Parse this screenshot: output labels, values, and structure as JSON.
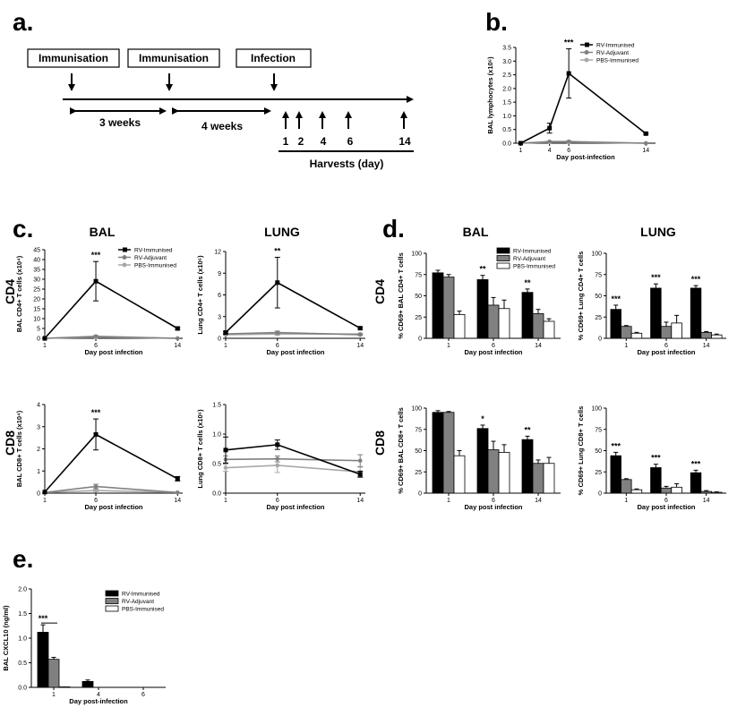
{
  "panel_labels": {
    "a": "a.",
    "b": "b.",
    "c": "c.",
    "d": "d.",
    "e": "e."
  },
  "timeline": {
    "boxes": [
      "Immunisation",
      "Immunisation",
      "Infection"
    ],
    "intervals": [
      "3 weeks",
      "4 weeks"
    ],
    "harvest_days": [
      "1",
      "2",
      "4",
      "6",
      "14"
    ],
    "harvest_label": "Harvests (day)"
  },
  "headers": {
    "c_bal": "BAL",
    "c_lung": "LUNG",
    "d_bal": "BAL",
    "d_lung": "LUNG",
    "row_cd4": "CD4",
    "row_cd8": "CD8"
  },
  "series_names": [
    "RV-Immunised",
    "RV-Adjuvant",
    "PBS-Immunised"
  ],
  "colors": {
    "rv_immunised": "#000000",
    "rv_adjuvant": "#808080",
    "pbs_immunised_line": "#a8a8a8",
    "pbs_immunised_bar": "#ffffff"
  },
  "chart_data": [
    {
      "id": "b",
      "type": "line",
      "x": [
        1,
        4,
        6,
        14
      ],
      "xticks": [
        "1",
        "4",
        "6",
        "14"
      ],
      "xlim": [
        0.5,
        15
      ],
      "ylim": [
        0,
        3.5
      ],
      "yticks": [
        "0.0",
        "0.5",
        "1.0",
        "1.5",
        "2.0",
        "2.5",
        "3.0",
        "3.5"
      ],
      "ylabel": "BAL lymphocytes (x10⁶)",
      "xlabel": "Day post-infection",
      "legend": "top-right",
      "series": [
        {
          "name": "RV-Immunised",
          "values": [
            0.0,
            0.55,
            2.55,
            0.35
          ],
          "err": [
            0.0,
            0.18,
            0.9,
            0.03
          ]
        },
        {
          "name": "RV-Adjuvant",
          "values": [
            0.0,
            0.06,
            0.06,
            0.0
          ],
          "err": [
            0.0,
            0.02,
            0.03,
            0.0
          ]
        },
        {
          "name": "PBS-Immunised",
          "values": [
            0.0,
            0.04,
            0.04,
            0.0
          ],
          "err": [
            0.0,
            0.01,
            0.02,
            0.0
          ]
        }
      ],
      "annotations": [
        {
          "x": 6,
          "text": "***"
        }
      ]
    },
    {
      "id": "c_bal_cd4",
      "type": "line",
      "x": [
        1,
        6,
        14
      ],
      "xticks": [
        "1",
        "6",
        "14"
      ],
      "xlim": [
        1,
        14.5
      ],
      "ylim": [
        0,
        45
      ],
      "yticks": [
        "0",
        "5",
        "10",
        "15",
        "20",
        "25",
        "30",
        "35",
        "40",
        "45"
      ],
      "ylabel": "BAL CD4+ T cells (x10⁴)",
      "xlabel": "Day post infection",
      "legend": "top-right",
      "series": [
        {
          "name": "RV-Immunised",
          "values": [
            0,
            29,
            5
          ],
          "err": [
            0,
            10,
            0.6
          ]
        },
        {
          "name": "RV-Adjuvant",
          "values": [
            0,
            1.0,
            0
          ],
          "err": [
            0,
            0.4,
            0
          ]
        },
        {
          "name": "PBS-Immunised",
          "values": [
            0,
            0.6,
            0
          ],
          "err": [
            0,
            0.3,
            0
          ]
        }
      ],
      "annotations": [
        {
          "x": 6,
          "text": "***"
        }
      ]
    },
    {
      "id": "c_lung_cd4",
      "type": "line",
      "x": [
        1,
        6,
        14
      ],
      "xticks": [
        "1",
        "6",
        "14"
      ],
      "xlim": [
        1,
        14.5
      ],
      "ylim": [
        0,
        12
      ],
      "yticks": [
        "0",
        "3",
        "6",
        "9",
        "12"
      ],
      "ylabel": "Lung CD4+ T cells (x10⁶)",
      "xlabel": "Day post infection",
      "series": [
        {
          "name": "RV-Immunised",
          "values": [
            0.8,
            7.7,
            1.4
          ],
          "err": [
            0.15,
            3.5,
            0.15
          ]
        },
        {
          "name": "RV-Adjuvant",
          "values": [
            0.6,
            0.8,
            0.5
          ],
          "err": [
            0.1,
            0.2,
            0.1
          ]
        },
        {
          "name": "PBS-Immunised",
          "values": [
            0.5,
            0.6,
            0.6
          ],
          "err": [
            0.1,
            0.2,
            0.1
          ]
        }
      ],
      "annotations": [
        {
          "x": 6,
          "text": "**"
        }
      ]
    },
    {
      "id": "c_bal_cd8",
      "type": "line",
      "x": [
        1,
        6,
        14
      ],
      "xticks": [
        "1",
        "6",
        "14"
      ],
      "xlim": [
        1,
        14.5
      ],
      "ylim": [
        0,
        4
      ],
      "yticks": [
        "0",
        "1",
        "2",
        "3",
        "4"
      ],
      "ylabel": "BAL CD8+ T cells (x10⁴)",
      "xlabel": "Day post infection",
      "series": [
        {
          "name": "RV-Immunised",
          "values": [
            0.05,
            2.65,
            0.65
          ],
          "err": [
            0.0,
            0.7,
            0.1
          ]
        },
        {
          "name": "RV-Adjuvant",
          "values": [
            0.03,
            0.3,
            0.03
          ],
          "err": [
            0.0,
            0.1,
            0.0
          ]
        },
        {
          "name": "PBS-Immunised",
          "values": [
            0.03,
            0.12,
            0.03
          ],
          "err": [
            0.0,
            0.05,
            0.0
          ]
        }
      ],
      "annotations": [
        {
          "x": 6,
          "text": "***"
        }
      ]
    },
    {
      "id": "c_lung_cd8",
      "type": "line",
      "x": [
        1,
        6,
        14
      ],
      "xticks": [
        "1",
        "6",
        "14"
      ],
      "xlim": [
        1,
        14.5
      ],
      "ylim": [
        0,
        1.5
      ],
      "yticks": [
        "0.0",
        "0.5",
        "1.0",
        "1.5"
      ],
      "ylabel": "Lung CD8+ T cells (x10⁶)",
      "xlabel": "Day post infection",
      "series": [
        {
          "name": "RV-Immunised",
          "values": [
            0.73,
            0.82,
            0.32
          ],
          "err": [
            0.22,
            0.08,
            0.05
          ]
        },
        {
          "name": "RV-Adjuvant",
          "values": [
            0.57,
            0.58,
            0.55
          ],
          "err": [
            0.06,
            0.05,
            0.1
          ]
        },
        {
          "name": "PBS-Immunised",
          "values": [
            0.43,
            0.47,
            0.36
          ],
          "err": [
            0.06,
            0.12,
            0.08
          ]
        }
      ],
      "annotations": []
    },
    {
      "id": "d_bal_cd4",
      "type": "bar",
      "categories": [
        "1",
        "6",
        "14"
      ],
      "ylim": [
        0,
        100
      ],
      "yticks": [
        "0",
        "25",
        "50",
        "75",
        "100"
      ],
      "ylabel": "% CD69+ BAL CD4+ T cells",
      "xlabel": "Day post infection",
      "legend": "top-right",
      "series": [
        {
          "name": "RV-Immunised",
          "values": [
            77,
            69,
            54
          ],
          "err": [
            3,
            5,
            4
          ]
        },
        {
          "name": "RV-Adjuvant",
          "values": [
            72,
            39,
            29
          ],
          "err": [
            3,
            9,
            5
          ]
        },
        {
          "name": "PBS-Immunised",
          "values": [
            28,
            35,
            20
          ],
          "err": [
            4,
            10,
            3
          ]
        }
      ],
      "annotations": [
        {
          "category": "6",
          "text": "**"
        },
        {
          "category": "14",
          "text": "**"
        }
      ]
    },
    {
      "id": "d_lung_cd4",
      "type": "bar",
      "categories": [
        "1",
        "6",
        "14"
      ],
      "ylim": [
        0,
        100
      ],
      "yticks": [
        "0",
        "25",
        "50",
        "75",
        "100"
      ],
      "ylabel": "% CD69+ Lung CD4+ T cells",
      "xlabel": "Day post infection",
      "series": [
        {
          "name": "RV-Immunised",
          "values": [
            34,
            59,
            59
          ],
          "err": [
            5,
            5,
            3
          ]
        },
        {
          "name": "RV-Adjuvant",
          "values": [
            14,
            14,
            7
          ],
          "err": [
            1,
            5,
            1
          ]
        },
        {
          "name": "PBS-Immunised",
          "values": [
            6,
            18,
            4
          ],
          "err": [
            1,
            9,
            1
          ]
        }
      ],
      "annotations": [
        {
          "category": "1",
          "text": "***"
        },
        {
          "category": "6",
          "text": "***"
        },
        {
          "category": "14",
          "text": "***"
        }
      ]
    },
    {
      "id": "d_bal_cd8",
      "type": "bar",
      "categories": [
        "1",
        "6",
        "14"
      ],
      "ylim": [
        0,
        100
      ],
      "yticks": [
        "0",
        "25",
        "50",
        "75",
        "100"
      ],
      "ylabel": "% CD69+ BAL CD8+ T cells",
      "xlabel": "Day post infection",
      "series": [
        {
          "name": "RV-Immunised",
          "values": [
            95,
            76,
            63
          ],
          "err": [
            2,
            4,
            4
          ]
        },
        {
          "name": "RV-Adjuvant",
          "values": [
            95,
            51,
            35
          ],
          "err": [
            1,
            10,
            4
          ]
        },
        {
          "name": "PBS-Immunised",
          "values": [
            44,
            48,
            35
          ],
          "err": [
            6,
            9,
            7
          ]
        }
      ],
      "annotations": [
        {
          "category": "6",
          "text": "*"
        },
        {
          "category": "14",
          "text": "**"
        }
      ]
    },
    {
      "id": "d_lung_cd8",
      "type": "bar",
      "categories": [
        "1",
        "6",
        "14"
      ],
      "ylim": [
        0,
        100
      ],
      "yticks": [
        "0",
        "25",
        "50",
        "75",
        "100"
      ],
      "ylabel": "% CD69+ Lung CD8+ T cells",
      "xlabel": "Day post infection",
      "series": [
        {
          "name": "RV-Immunised",
          "values": [
            44,
            30,
            24
          ],
          "err": [
            4,
            4,
            3
          ]
        },
        {
          "name": "RV-Adjuvant",
          "values": [
            16,
            6,
            2
          ],
          "err": [
            1,
            2,
            1
          ]
        },
        {
          "name": "PBS-Immunised",
          "values": [
            4,
            7,
            1
          ],
          "err": [
            1,
            4,
            0.5
          ]
        }
      ],
      "annotations": [
        {
          "category": "1",
          "text": "***"
        },
        {
          "category": "6",
          "text": "***"
        },
        {
          "category": "14",
          "text": "***"
        }
      ]
    },
    {
      "id": "e",
      "type": "bar",
      "categories": [
        "1",
        "4",
        "6"
      ],
      "ylim": [
        0,
        2.0
      ],
      "yticks": [
        "0.0",
        "0.5",
        "1.0",
        "1.5",
        "2.0"
      ],
      "ylabel": "BAL CXCL10 (ng/ml)",
      "xlabel": "Day post-infection",
      "legend": "top-right",
      "series": [
        {
          "name": "RV-Immunised",
          "values": [
            1.12,
            0.12,
            0.0
          ],
          "err": [
            0.15,
            0.03,
            0.0
          ]
        },
        {
          "name": "RV-Adjuvant",
          "values": [
            0.57,
            0.0,
            0.0
          ],
          "err": [
            0.04,
            0.0,
            0.0
          ]
        },
        {
          "name": "PBS-Immunised",
          "values": [
            0.01,
            0.0,
            0.0
          ],
          "err": [
            0.0,
            0.0,
            0.0
          ]
        }
      ],
      "annotations": [
        {
          "category": "1",
          "text": "***"
        }
      ]
    }
  ]
}
